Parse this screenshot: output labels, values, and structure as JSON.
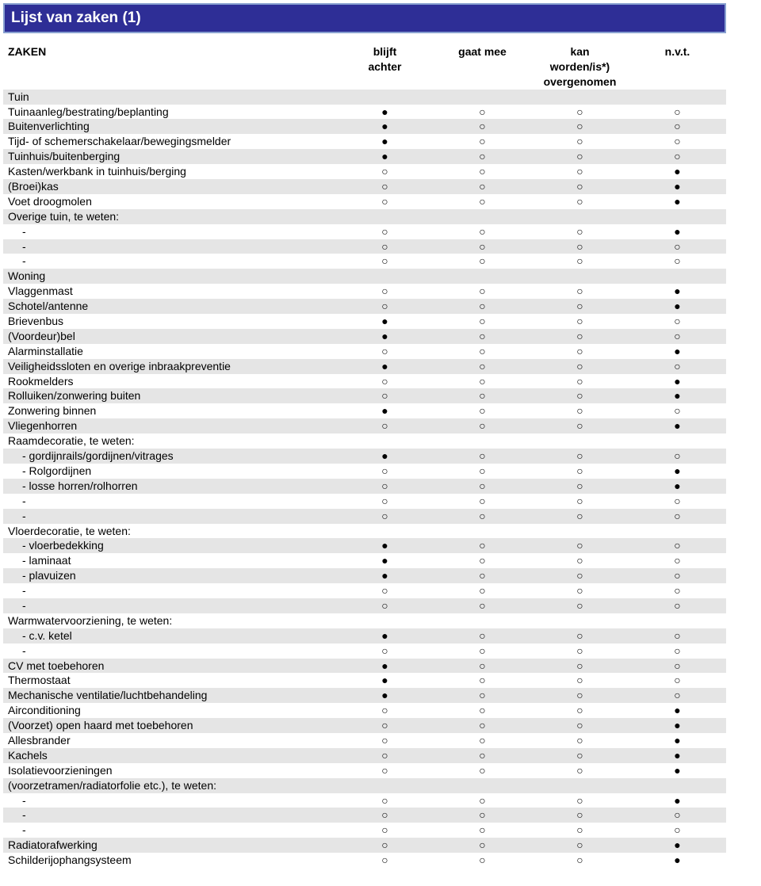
{
  "title": "Lijst van zaken (1)",
  "columns": {
    "label": "ZAKEN",
    "c1": "blijft\nachter",
    "c2": "gaat mee",
    "c3": "kan\nworden/is*)\novergenomen",
    "c4": "n.v.t."
  },
  "markers": {
    "filled": "●",
    "open": "○"
  },
  "rows": [
    {
      "label": "Tuin",
      "section": true
    },
    {
      "label": "Tuinaanleg/bestrating/beplanting",
      "m": [
        1,
        0,
        0,
        0
      ]
    },
    {
      "label": "Buitenverlichting",
      "m": [
        1,
        0,
        0,
        0
      ]
    },
    {
      "label": "Tijd- of schemerschakelaar/bewegingsmelder",
      "m": [
        1,
        0,
        0,
        0
      ]
    },
    {
      "label": "Tuinhuis/buitenberging",
      "m": [
        1,
        0,
        0,
        0
      ]
    },
    {
      "label": "Kasten/werkbank in tuinhuis/berging",
      "m": [
        0,
        0,
        0,
        1
      ]
    },
    {
      "label": "(Broei)kas",
      "m": [
        0,
        0,
        0,
        1
      ]
    },
    {
      "label": "Voet droogmolen",
      "m": [
        0,
        0,
        0,
        1
      ]
    },
    {
      "label": "Overige tuin, te weten:",
      "section": false,
      "noMarks": true
    },
    {
      "label": "-",
      "indent": true,
      "m": [
        0,
        0,
        0,
        1
      ]
    },
    {
      "label": "-",
      "indent": true,
      "m": [
        0,
        0,
        0,
        0
      ]
    },
    {
      "label": "-",
      "indent": true,
      "m": [
        0,
        0,
        0,
        0
      ]
    },
    {
      "label": "Woning",
      "section": true
    },
    {
      "label": "Vlaggenmast",
      "m": [
        0,
        0,
        0,
        1
      ]
    },
    {
      "label": "Schotel/antenne",
      "m": [
        0,
        0,
        0,
        1
      ]
    },
    {
      "label": "Brievenbus",
      "m": [
        1,
        0,
        0,
        0
      ]
    },
    {
      "label": "(Voordeur)bel",
      "m": [
        1,
        0,
        0,
        0
      ]
    },
    {
      "label": "Alarminstallatie",
      "m": [
        0,
        0,
        0,
        1
      ]
    },
    {
      "label": "Veiligheidssloten en overige inbraakpreventie",
      "m": [
        1,
        0,
        0,
        0
      ]
    },
    {
      "label": "Rookmelders",
      "m": [
        0,
        0,
        0,
        1
      ]
    },
    {
      "label": "Rolluiken/zonwering buiten",
      "m": [
        0,
        0,
        0,
        1
      ]
    },
    {
      "label": "Zonwering binnen",
      "m": [
        1,
        0,
        0,
        0
      ]
    },
    {
      "label": "Vliegenhorren",
      "m": [
        0,
        0,
        0,
        1
      ]
    },
    {
      "label": "Raamdecoratie, te weten:",
      "noMarks": true
    },
    {
      "label": "- gordijnrails/gordijnen/vitrages",
      "indent": true,
      "m": [
        1,
        0,
        0,
        0
      ]
    },
    {
      "label": "- Rolgordijnen",
      "indent": true,
      "m": [
        0,
        0,
        0,
        1
      ]
    },
    {
      "label": "- losse horren/rolhorren",
      "indent": true,
      "m": [
        0,
        0,
        0,
        1
      ]
    },
    {
      "label": "-",
      "indent": true,
      "m": [
        0,
        0,
        0,
        0
      ]
    },
    {
      "label": "-",
      "indent": true,
      "m": [
        0,
        0,
        0,
        0
      ]
    },
    {
      "label": "Vloerdecoratie, te weten:",
      "noMarks": true
    },
    {
      "label": "- vloerbedekking",
      "indent": true,
      "m": [
        1,
        0,
        0,
        0
      ]
    },
    {
      "label": "- laminaat",
      "indent": true,
      "m": [
        1,
        0,
        0,
        0
      ]
    },
    {
      "label": "- plavuizen",
      "indent": true,
      "m": [
        1,
        0,
        0,
        0
      ]
    },
    {
      "label": "-",
      "indent": true,
      "m": [
        0,
        0,
        0,
        0
      ]
    },
    {
      "label": "-",
      "indent": true,
      "m": [
        0,
        0,
        0,
        0
      ]
    },
    {
      "label": "Warmwatervoorziening, te weten:",
      "noMarks": true
    },
    {
      "label": "- c.v. ketel",
      "indent": true,
      "m": [
        1,
        0,
        0,
        0
      ]
    },
    {
      "label": "-",
      "indent": true,
      "m": [
        0,
        0,
        0,
        0
      ]
    },
    {
      "label": "CV met toebehoren",
      "m": [
        1,
        0,
        0,
        0
      ]
    },
    {
      "label": "Thermostaat",
      "m": [
        1,
        0,
        0,
        0
      ]
    },
    {
      "label": "Mechanische ventilatie/luchtbehandeling",
      "m": [
        1,
        0,
        0,
        0
      ]
    },
    {
      "label": "Airconditioning",
      "m": [
        0,
        0,
        0,
        1
      ]
    },
    {
      "label": "(Voorzet) open haard met toebehoren",
      "m": [
        0,
        0,
        0,
        1
      ]
    },
    {
      "label": "Allesbrander",
      "m": [
        0,
        0,
        0,
        1
      ]
    },
    {
      "label": "Kachels",
      "m": [
        0,
        0,
        0,
        1
      ]
    },
    {
      "label": "Isolatievoorzieningen",
      "m": [
        0,
        0,
        0,
        1
      ]
    },
    {
      "label": "(voorzetramen/radiatorfolie etc.), te weten:",
      "noMarks": true
    },
    {
      "label": "-",
      "indent": true,
      "m": [
        0,
        0,
        0,
        1
      ]
    },
    {
      "label": "-",
      "indent": true,
      "m": [
        0,
        0,
        0,
        0
      ]
    },
    {
      "label": "-",
      "indent": true,
      "m": [
        0,
        0,
        0,
        0
      ]
    },
    {
      "label": "Radiatorafwerking",
      "m": [
        0,
        0,
        0,
        1
      ]
    },
    {
      "label": "Schilderijophangsysteem",
      "m": [
        0,
        0,
        0,
        1
      ]
    }
  ]
}
